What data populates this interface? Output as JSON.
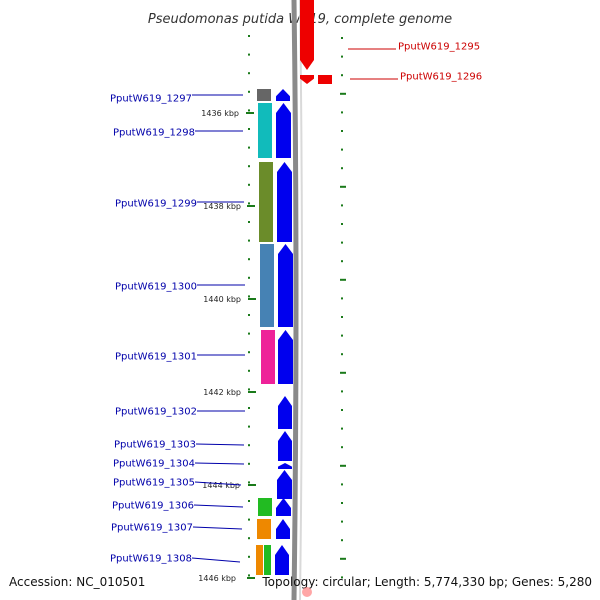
{
  "title": "Pseudomonas putida W619, complete genome",
  "accession": "Accession: NC_010501",
  "topology": "Topology: circular; Length: 5,774,330 bp; Genes: 5,280",
  "colors": {
    "backbone": "#8a8a8a",
    "forward": "#0000ee",
    "reverse": "#ee0000",
    "tick": "#1a7a1a",
    "label_forward": "#0000aa",
    "label_reverse": "#cc0000"
  },
  "scale": {
    "ticks": [
      {
        "label": "1436 kbp"
      },
      {
        "label": "1438 kbp"
      },
      {
        "label": "1440 kbp"
      },
      {
        "label": "1442 kbp"
      },
      {
        "label": "1444 kbp"
      },
      {
        "label": "1446 kbp"
      }
    ]
  },
  "genes": [
    {
      "name": "PputW619_1295",
      "strand": "reverse",
      "cog_color": "#ee0000"
    },
    {
      "name": "PputW619_1296",
      "strand": "reverse",
      "cog_color": "#22bb22"
    },
    {
      "name": "PputW619_1297",
      "strand": "forward",
      "cog_color": "#666666"
    },
    {
      "name": "PputW619_1298",
      "strand": "forward",
      "cog_color": "#11bbbb"
    },
    {
      "name": "PputW619_1299",
      "strand": "forward",
      "cog_color": "#6b8c2a"
    },
    {
      "name": "PputW619_1300",
      "strand": "forward",
      "cog_color": "#4682b4"
    },
    {
      "name": "PputW619_1301",
      "strand": "forward",
      "cog_color": "#ee2299"
    },
    {
      "name": "PputW619_1302",
      "strand": "forward",
      "cog_color": ""
    },
    {
      "name": "PputW619_1303",
      "strand": "forward",
      "cog_color": ""
    },
    {
      "name": "PputW619_1304",
      "strand": "forward",
      "cog_color": ""
    },
    {
      "name": "PputW619_1305",
      "strand": "forward",
      "cog_color": ""
    },
    {
      "name": "PputW619_1306",
      "strand": "forward",
      "cog_color": "#22bb22"
    },
    {
      "name": "PputW619_1307",
      "strand": "forward",
      "cog_color": "#ee8800"
    },
    {
      "name": "PputW619_1308",
      "strand": "forward",
      "cog_color": "#ee8800"
    }
  ]
}
